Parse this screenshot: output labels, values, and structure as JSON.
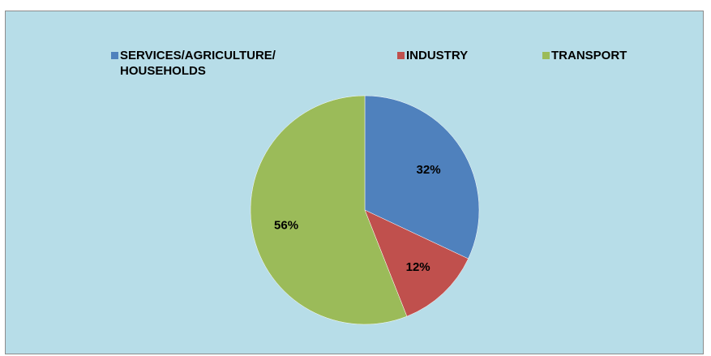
{
  "chart_data": {
    "type": "pie",
    "title": "",
    "legend_position": "top",
    "categories": [
      "SERVICES/AGRICULTURE/\nHOUSEHOLDS",
      "INDUSTRY",
      "TRANSPORT"
    ],
    "values": [
      32,
      12,
      56
    ],
    "labels": [
      "32%",
      "12%",
      "56%"
    ],
    "colors": [
      "#4f81bd",
      "#c0504d",
      "#9bbb59"
    ]
  },
  "background_color": "#b7dde8"
}
